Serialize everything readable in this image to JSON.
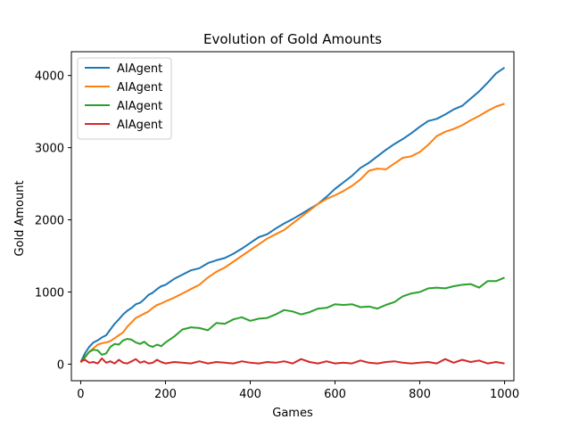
{
  "chart_data": {
    "type": "line",
    "title": "Evolution of Gold Amounts",
    "xlabel": "Games",
    "ylabel": "Gold Amount",
    "xlim": [
      -22,
      1022
    ],
    "ylim": [
      -230,
      4330
    ],
    "xticks": [
      0,
      200,
      400,
      600,
      800,
      1000
    ],
    "yticks": [
      0,
      1000,
      2000,
      3000,
      4000
    ],
    "grid": false,
    "legend_position": "upper-left",
    "series": [
      {
        "name": "AIAgent",
        "color": "#1f77b4",
        "x": [
          0,
          10,
          20,
          30,
          40,
          50,
          60,
          70,
          80,
          90,
          100,
          110,
          120,
          130,
          140,
          150,
          160,
          170,
          180,
          190,
          200,
          220,
          240,
          260,
          280,
          300,
          320,
          340,
          360,
          380,
          400,
          420,
          440,
          460,
          480,
          500,
          520,
          540,
          560,
          580,
          600,
          620,
          640,
          660,
          680,
          700,
          720,
          740,
          760,
          780,
          800,
          820,
          840,
          860,
          880,
          900,
          920,
          940,
          960,
          980,
          1000
        ],
        "values": [
          30,
          150,
          240,
          300,
          330,
          370,
          400,
          480,
          560,
          620,
          690,
          740,
          780,
          830,
          850,
          900,
          960,
          990,
          1040,
          1080,
          1100,
          1180,
          1240,
          1300,
          1330,
          1400,
          1440,
          1470,
          1530,
          1600,
          1680,
          1760,
          1800,
          1880,
          1950,
          2010,
          2080,
          2150,
          2220,
          2320,
          2430,
          2520,
          2610,
          2720,
          2790,
          2880,
          2970,
          3050,
          3120,
          3200,
          3290,
          3370,
          3400,
          3460,
          3530,
          3580,
          3680,
          3780,
          3900,
          4030,
          4110
        ]
      },
      {
        "name": "AIAgent",
        "color": "#ff7f0e",
        "x": [
          0,
          10,
          20,
          30,
          40,
          50,
          60,
          70,
          80,
          90,
          100,
          110,
          120,
          130,
          140,
          150,
          160,
          170,
          180,
          190,
          200,
          220,
          240,
          260,
          280,
          300,
          320,
          340,
          360,
          380,
          400,
          420,
          440,
          460,
          480,
          500,
          520,
          540,
          560,
          580,
          600,
          620,
          640,
          660,
          680,
          700,
          720,
          740,
          760,
          780,
          800,
          820,
          840,
          860,
          880,
          900,
          920,
          940,
          960,
          980,
          1000
        ],
        "values": [
          20,
          90,
          170,
          220,
          270,
          290,
          300,
          320,
          360,
          400,
          440,
          520,
          580,
          640,
          670,
          700,
          730,
          780,
          820,
          840,
          870,
          920,
          980,
          1040,
          1100,
          1200,
          1280,
          1340,
          1420,
          1500,
          1580,
          1660,
          1740,
          1800,
          1860,
          1950,
          2040,
          2130,
          2220,
          2290,
          2340,
          2400,
          2470,
          2560,
          2680,
          2710,
          2700,
          2780,
          2860,
          2880,
          2940,
          3040,
          3160,
          3220,
          3260,
          3310,
          3380,
          3440,
          3510,
          3570,
          3610
        ]
      },
      {
        "name": "AIAgent",
        "color": "#2ca02c",
        "x": [
          0,
          10,
          20,
          30,
          40,
          50,
          60,
          70,
          80,
          90,
          100,
          110,
          120,
          130,
          140,
          150,
          160,
          170,
          180,
          190,
          200,
          220,
          240,
          260,
          280,
          300,
          320,
          340,
          360,
          380,
          400,
          420,
          440,
          460,
          480,
          500,
          520,
          540,
          560,
          580,
          600,
          620,
          640,
          660,
          680,
          700,
          720,
          740,
          760,
          780,
          800,
          820,
          840,
          860,
          880,
          900,
          920,
          940,
          960,
          980,
          1000
        ],
        "values": [
          30,
          100,
          170,
          200,
          190,
          130,
          150,
          240,
          280,
          270,
          330,
          350,
          340,
          300,
          280,
          310,
          260,
          240,
          270,
          250,
          300,
          380,
          480,
          510,
          500,
          470,
          570,
          560,
          620,
          650,
          600,
          630,
          640,
          690,
          750,
          730,
          690,
          720,
          770,
          780,
          830,
          820,
          830,
          790,
          800,
          770,
          820,
          860,
          940,
          980,
          1000,
          1050,
          1060,
          1050,
          1080,
          1100,
          1110,
          1060,
          1150,
          1150,
          1200
        ]
      },
      {
        "name": "AIAgent",
        "color": "#d62728",
        "x": [
          0,
          10,
          20,
          30,
          40,
          50,
          60,
          70,
          80,
          90,
          100,
          110,
          120,
          130,
          140,
          150,
          160,
          170,
          180,
          190,
          200,
          220,
          240,
          260,
          280,
          300,
          320,
          340,
          360,
          380,
          400,
          420,
          440,
          460,
          480,
          500,
          520,
          540,
          560,
          580,
          600,
          620,
          640,
          660,
          680,
          700,
          720,
          740,
          760,
          780,
          800,
          820,
          840,
          860,
          880,
          900,
          920,
          940,
          960,
          980,
          1000
        ],
        "values": [
          40,
          60,
          20,
          30,
          10,
          80,
          20,
          40,
          10,
          60,
          20,
          10,
          40,
          70,
          20,
          40,
          10,
          20,
          60,
          30,
          10,
          30,
          20,
          10,
          40,
          10,
          30,
          20,
          10,
          40,
          20,
          10,
          30,
          20,
          40,
          10,
          70,
          30,
          10,
          40,
          10,
          20,
          10,
          50,
          20,
          10,
          30,
          40,
          20,
          10,
          20,
          30,
          10,
          70,
          20,
          60,
          30,
          50,
          10,
          30,
          10
        ]
      }
    ]
  }
}
